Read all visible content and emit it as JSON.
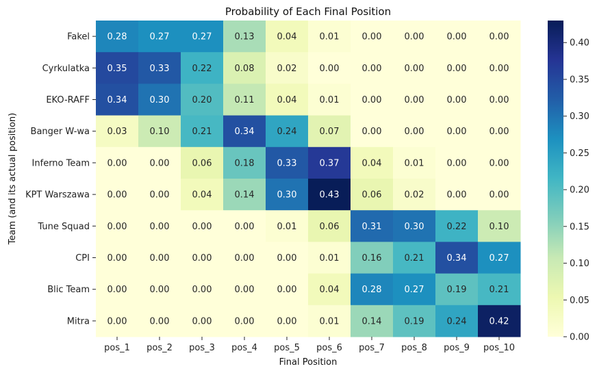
{
  "chart_data": {
    "type": "heatmap",
    "title": "Probability of Each Final Position",
    "xlabel": "Final Position",
    "ylabel": "Team (and its actual position)",
    "x_categories": [
      "pos_1",
      "pos_2",
      "pos_3",
      "pos_4",
      "pos_5",
      "pos_6",
      "pos_7",
      "pos_8",
      "pos_9",
      "pos_10"
    ],
    "y_categories": [
      "Fakel",
      "Cyrkulatka",
      "EKO-RAFF",
      "Banger W-wa",
      "Inferno Team",
      "KPT Warszawa",
      "Tune Squad",
      "CPI",
      "Blic Team",
      "Mitra"
    ],
    "values": [
      [
        0.28,
        0.27,
        0.27,
        0.13,
        0.04,
        0.01,
        0.0,
        0.0,
        0.0,
        0.0
      ],
      [
        0.35,
        0.33,
        0.22,
        0.08,
        0.02,
        0.0,
        0.0,
        0.0,
        0.0,
        0.0
      ],
      [
        0.34,
        0.3,
        0.2,
        0.11,
        0.04,
        0.01,
        0.0,
        0.0,
        0.0,
        0.0
      ],
      [
        0.03,
        0.1,
        0.21,
        0.34,
        0.24,
        0.07,
        0.0,
        0.0,
        0.0,
        0.0
      ],
      [
        0.0,
        0.0,
        0.06,
        0.18,
        0.33,
        0.37,
        0.04,
        0.01,
        0.0,
        0.0
      ],
      [
        0.0,
        0.0,
        0.04,
        0.14,
        0.3,
        0.43,
        0.06,
        0.02,
        0.0,
        0.0
      ],
      [
        0.0,
        0.0,
        0.0,
        0.0,
        0.01,
        0.06,
        0.31,
        0.3,
        0.22,
        0.1
      ],
      [
        0.0,
        0.0,
        0.0,
        0.0,
        0.0,
        0.01,
        0.16,
        0.21,
        0.34,
        0.27
      ],
      [
        0.0,
        0.0,
        0.0,
        0.0,
        0.0,
        0.04,
        0.28,
        0.27,
        0.19,
        0.21
      ],
      [
        0.0,
        0.0,
        0.0,
        0.0,
        0.0,
        0.01,
        0.14,
        0.19,
        0.24,
        0.42
      ]
    ],
    "value_labels_shown": true,
    "colormap": "YlGnBu",
    "colorbar": {
      "range": [
        0.0,
        0.43
      ],
      "ticks": [
        0.0,
        0.05,
        0.1,
        0.15,
        0.2,
        0.25,
        0.3,
        0.35,
        0.4
      ],
      "tick_labels": [
        "0.00",
        "0.05",
        "0.10",
        "0.15",
        "0.20",
        "0.25",
        "0.30",
        "0.35",
        "0.40"
      ]
    },
    "grid": false,
    "legend": "colorbar-right"
  },
  "colormap_stops": [
    "#ffffd9",
    "#edf8b1",
    "#c7e9b4",
    "#7fcdbb",
    "#41b6c4",
    "#1d91c0",
    "#225ea8",
    "#253494",
    "#081d58"
  ]
}
